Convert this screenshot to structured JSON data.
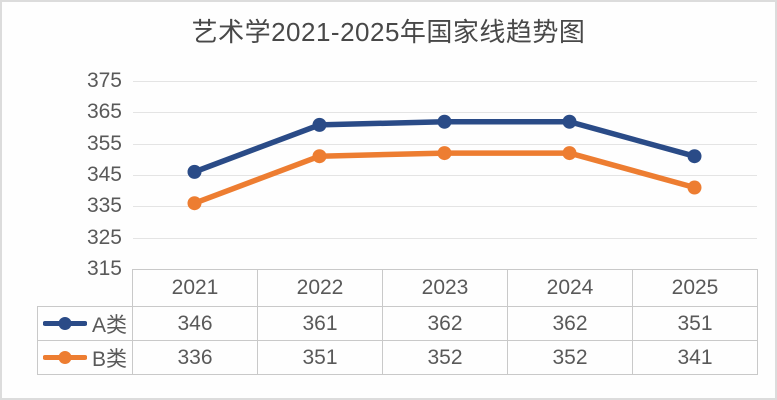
{
  "chart_data": {
    "type": "line",
    "title": "艺术学2021-2025年国家线趋势图",
    "categories": [
      "2021",
      "2022",
      "2023",
      "2024",
      "2025"
    ],
    "series": [
      {
        "name": "A类",
        "values": [
          346,
          361,
          362,
          362,
          351
        ],
        "color": "#2A4B87"
      },
      {
        "name": "B类",
        "values": [
          336,
          351,
          352,
          352,
          341
        ],
        "color": "#ED7D31"
      }
    ],
    "xlabel": "",
    "ylabel": "",
    "ylim": [
      315,
      375
    ],
    "yticks": [
      375,
      365,
      355,
      345,
      335,
      325,
      315
    ],
    "grid": true,
    "legend_position": "data-table-left",
    "data_table": true,
    "marker": "circle"
  },
  "colors": {
    "series_a": "#2A4B87",
    "series_b": "#ED7D31",
    "gridline": "#e4e4e4",
    "table_border": "#c9c9c9",
    "text": "#595959",
    "title_text": "#484848",
    "canvas_border": "#dcdcdc"
  }
}
